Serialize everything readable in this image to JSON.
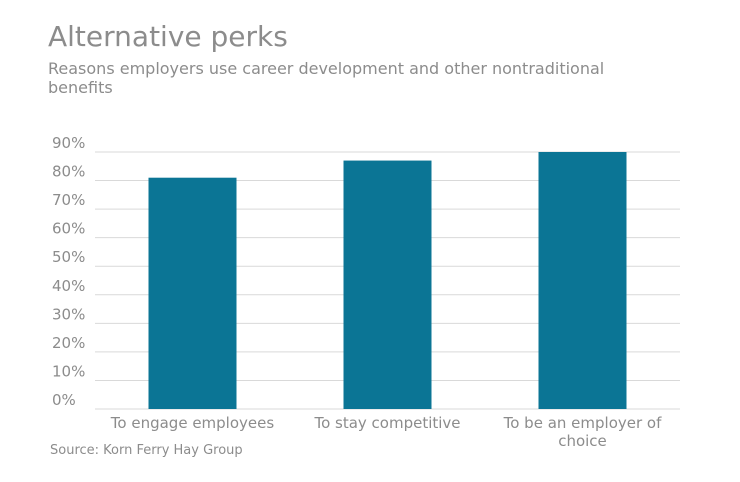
{
  "chart_data": {
    "type": "bar",
    "title": "Alternative perks",
    "subtitle": "Reasons employers use career development and other nontraditional benefits",
    "categories": [
      "To engage employees",
      "To stay competitive",
      "To be an employer of choice"
    ],
    "category_lines": [
      [
        "To engage employees"
      ],
      [
        "To stay competitive"
      ],
      [
        "To be an employer of",
        "choice"
      ]
    ],
    "values": [
      81,
      87,
      90
    ],
    "value_unit": "%",
    "ylim": [
      0,
      90
    ],
    "yticks": [
      "0%",
      "10%",
      "20%",
      "30%",
      "40%",
      "50%",
      "60%",
      "70%",
      "80%",
      "90%"
    ],
    "xlabel": "",
    "ylabel": "",
    "grid": true,
    "legend": "none",
    "bar_color": "#0b7595",
    "gridline_color": "#d9d9d9",
    "text_color": "#8c8c8c",
    "source": "Source: Korn Ferry Hay Group"
  }
}
